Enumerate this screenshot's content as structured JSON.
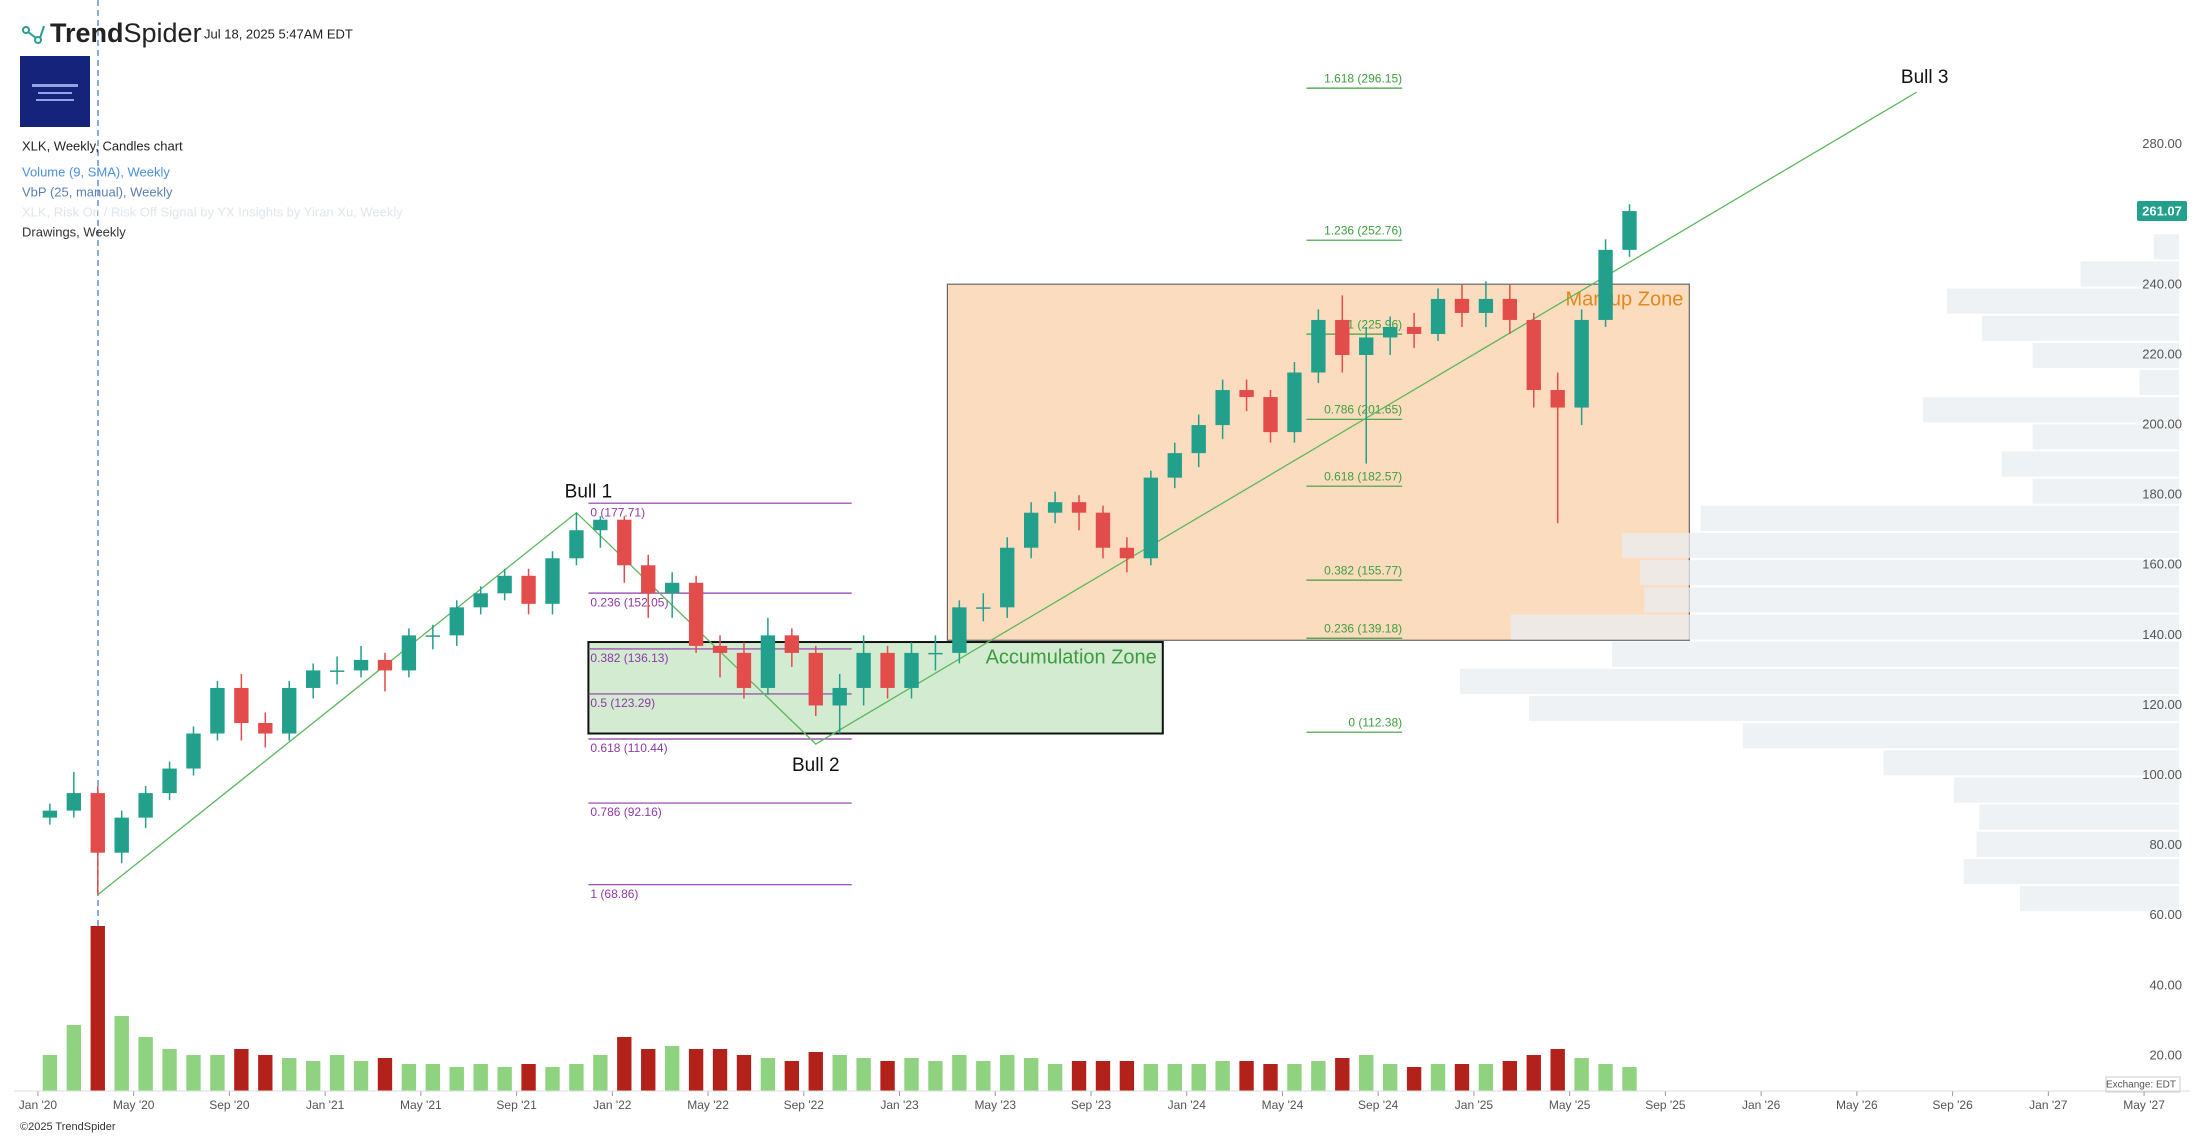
{
  "brand": [
    "Trend",
    "Spider"
  ],
  "timestamp": "Jul 18, 2025 5:47AM EDT",
  "legend": [
    "XLK, Weekly, Candles chart",
    "Volume (9, SMA), Weekly",
    "VbP (25, manual), Weekly",
    "XLK, Risk On / Risk Off Signal by YX Insights by Yiran Xu, Weekly",
    "Drawings, Weekly"
  ],
  "copyright": "©2025 TrendSpider",
  "exchange": "Exchange: EDT",
  "chart_data": {
    "type": "candlestick",
    "x": [
      "2020-01",
      "2020-02",
      "2020-03",
      "2020-04",
      "2020-05",
      "2020-06",
      "2020-07",
      "2020-08",
      "2020-09",
      "2020-10",
      "2020-11",
      "2020-12",
      "2021-01",
      "2021-02",
      "2021-03",
      "2021-04",
      "2021-05",
      "2021-06",
      "2021-07",
      "2021-08",
      "2021-09",
      "2021-10",
      "2021-11",
      "2021-12",
      "2022-01",
      "2022-02",
      "2022-03",
      "2022-04",
      "2022-05",
      "2022-06",
      "2022-07",
      "2022-08",
      "2022-09",
      "2022-10",
      "2022-11",
      "2022-12",
      "2023-01",
      "2023-02",
      "2023-03",
      "2023-04",
      "2023-05",
      "2023-06",
      "2023-07",
      "2023-08",
      "2023-09",
      "2023-10",
      "2023-11",
      "2023-12",
      "2024-01",
      "2024-02",
      "2024-03",
      "2024-04",
      "2024-05",
      "2024-06",
      "2024-07",
      "2024-08",
      "2024-09",
      "2024-10",
      "2024-11",
      "2024-12",
      "2025-01",
      "2025-02",
      "2025-03",
      "2025-04",
      "2025-05",
      "2025-06",
      "2025-07"
    ],
    "open": [
      88,
      90,
      95,
      78,
      88,
      95,
      102,
      112,
      125,
      115,
      112,
      125,
      130,
      130,
      133,
      130,
      140,
      140,
      148,
      152,
      157,
      149,
      162,
      170,
      173,
      160,
      152,
      155,
      137,
      135,
      125,
      140,
      135,
      120,
      125,
      135,
      125,
      135,
      135,
      148,
      148,
      165,
      175,
      178,
      175,
      165,
      162,
      185,
      192,
      200,
      210,
      208,
      198,
      215,
      230,
      220,
      225,
      228,
      226,
      236,
      232,
      236,
      230,
      210,
      205,
      230,
      250
    ],
    "high": [
      92,
      101,
      97,
      90,
      97,
      104,
      114,
      127,
      129,
      118,
      127,
      132,
      134,
      137,
      135,
      142,
      143,
      150,
      154,
      159,
      159,
      164,
      175,
      174,
      174,
      163,
      158,
      157,
      140,
      138,
      145,
      142,
      137,
      129,
      140,
      137,
      138,
      140,
      150,
      152,
      168,
      178,
      181,
      180,
      177,
      168,
      187,
      195,
      203,
      213,
      213,
      210,
      218,
      233,
      237,
      228,
      231,
      232,
      239,
      240,
      241,
      240,
      232,
      215,
      233,
      253,
      263
    ],
    "low": [
      86,
      88,
      66,
      75,
      85,
      93,
      100,
      110,
      110,
      108,
      110,
      122,
      126,
      128,
      124,
      128,
      136,
      137,
      146,
      150,
      146,
      146,
      160,
      165,
      155,
      145,
      145,
      135,
      128,
      122,
      123,
      131,
      117,
      112,
      120,
      122,
      122,
      130,
      132,
      144,
      145,
      162,
      172,
      170,
      162,
      158,
      160,
      182,
      188,
      196,
      204,
      195,
      195,
      212,
      215,
      189,
      220,
      222,
      224,
      228,
      228,
      226,
      205,
      172,
      200,
      228,
      248
    ],
    "close": [
      90,
      95,
      78,
      88,
      95,
      102,
      112,
      125,
      115,
      112,
      125,
      130,
      130,
      133,
      130,
      140,
      140,
      148,
      152,
      157,
      149,
      162,
      170,
      173,
      160,
      152,
      155,
      137,
      135,
      125,
      140,
      135,
      120,
      125,
      135,
      125,
      135,
      135,
      148,
      148,
      165,
      175,
      178,
      175,
      165,
      162,
      185,
      192,
      200,
      210,
      208,
      198,
      215,
      230,
      220,
      225,
      228,
      226,
      236,
      232,
      236,
      230,
      210,
      205,
      230,
      250,
      261.07
    ],
    "volume": [
      12,
      22,
      55,
      25,
      18,
      14,
      12,
      12,
      14,
      12,
      11,
      10,
      12,
      10,
      11,
      9,
      9,
      8,
      9,
      8,
      9,
      8,
      9,
      12,
      18,
      14,
      15,
      14,
      14,
      12,
      11,
      10,
      13,
      12,
      11,
      10,
      11,
      10,
      12,
      10,
      12,
      11,
      9,
      10,
      10,
      10,
      9,
      9,
      9,
      10,
      10,
      9,
      9,
      10,
      11,
      12,
      9,
      8,
      9,
      9,
      9,
      10,
      12,
      14,
      11,
      9,
      8
    ],
    "up_color": "#22a08c",
    "down_color": "#e24c4b",
    "volume_up_color": "#8fd27f",
    "volume_down_color": "#b3211b",
    "xlim": [
      "2019-12",
      "2027-06"
    ],
    "xticks": [
      {
        "value": "2020-01",
        "label": "Jan '20"
      },
      {
        "value": "2020-05",
        "label": "May '20"
      },
      {
        "value": "2020-09",
        "label": "Sep '20"
      },
      {
        "value": "2021-01",
        "label": "Jan '21"
      },
      {
        "value": "2021-05",
        "label": "May '21"
      },
      {
        "value": "2021-09",
        "label": "Sep '21"
      },
      {
        "value": "2022-01",
        "label": "Jan '22"
      },
      {
        "value": "2022-05",
        "label": "May '22"
      },
      {
        "value": "2022-09",
        "label": "Sep '22"
      },
      {
        "value": "2023-01",
        "label": "Jan '23"
      },
      {
        "value": "2023-05",
        "label": "May '23"
      },
      {
        "value": "2023-09",
        "label": "Sep '23"
      },
      {
        "value": "2024-01",
        "label": "Jan '24"
      },
      {
        "value": "2024-05",
        "label": "May '24"
      },
      {
        "value": "2024-09",
        "label": "Sep '24"
      },
      {
        "value": "2025-01",
        "label": "Jan '25"
      },
      {
        "value": "2025-05",
        "label": "May '25"
      },
      {
        "value": "2025-09",
        "label": "Sep '25"
      },
      {
        "value": "2026-01",
        "label": "Jan '26"
      },
      {
        "value": "2026-05",
        "label": "May '26"
      },
      {
        "value": "2026-09",
        "label": "Sep '26"
      },
      {
        "value": "2027-01",
        "label": "Jan '27"
      },
      {
        "value": "2027-05",
        "label": "May '27"
      }
    ],
    "ylim": [
      10,
      321
    ],
    "yticks": [
      {
        "value": 20,
        "label": "20.00"
      },
      {
        "value": 40,
        "label": "40.00"
      },
      {
        "value": 60,
        "label": "60.00"
      },
      {
        "value": 80,
        "label": "80.00"
      },
      {
        "value": 100,
        "label": "100.00"
      },
      {
        "value": 120,
        "label": "120.00"
      },
      {
        "value": 140,
        "label": "140.00"
      },
      {
        "value": 160,
        "label": "160.00"
      },
      {
        "value": 180,
        "label": "180.00"
      },
      {
        "value": 200,
        "label": "200.00"
      },
      {
        "value": 220,
        "label": "220.00"
      },
      {
        "value": 240,
        "label": "240.00"
      },
      {
        "value": 260,
        "label": "260.00"
      },
      {
        "value": 280,
        "label": "280.00"
      }
    ],
    "vbp": {
      "bins": [
        61,
        68.75,
        76.5,
        84.25,
        92,
        99.75,
        107.5,
        115.25,
        123,
        130.75,
        138.5,
        146.25,
        154,
        161.75,
        169.5,
        177.25,
        185,
        192.75,
        200.5,
        208.25,
        216,
        223.75,
        231.5,
        239.25,
        247,
        254.75
      ],
      "values": [
        113,
        153,
        144,
        142,
        160,
        210,
        310,
        462,
        511,
        403,
        475,
        380,
        383,
        396,
        340,
        104,
        126,
        104,
        182,
        28,
        104,
        140,
        165,
        70,
        18
      ],
      "color": "#e9edf0"
    },
    "zones": [
      {
        "label": "Accumulation Zone",
        "x": [
          "2021-12",
          "2023-12"
        ],
        "y": [
          112,
          138.1
        ],
        "color": "#d3ebd1",
        "text_color": "#3e9b3e"
      },
      {
        "label": "Markup Zone",
        "x": [
          "2023-03",
          "2025-10"
        ],
        "y": [
          138.6,
          240.2
        ],
        "color": "#fcdcbe",
        "text_color": "#e08a1e"
      }
    ],
    "fib_sets": [
      {
        "color": "#8e3aa8",
        "x": [
          "2021-12",
          "2022-11"
        ],
        "levels": [
          {
            "label": "0 (177.71)",
            "value": 177.71
          },
          {
            "label": "0.236 (152.05)",
            "value": 152.05
          },
          {
            "label": "0.382 (136.13)",
            "value": 136.13
          },
          {
            "label": "0.5 (123.29)",
            "value": 123.29
          },
          {
            "label": "0.618 (110.44)",
            "value": 110.44
          },
          {
            "label": "0.786 (92.16)",
            "value": 92.16
          },
          {
            "label": "1 (68.86)",
            "value": 68.86
          }
        ]
      },
      {
        "color": "#3f9e3f",
        "x": [
          "2024-06",
          "2024-10"
        ],
        "levels": [
          {
            "label": "1.618 (296.15)",
            "value": 296.15
          },
          {
            "label": "1.236 (252.76)",
            "value": 252.76
          },
          {
            "label": "1 (225.96)",
            "value": 225.96
          },
          {
            "label": "0.786 (201.65)",
            "value": 201.65
          },
          {
            "label": "0.618 (182.57)",
            "value": 182.57
          },
          {
            "label": "0.382 (155.77)",
            "value": 155.77
          },
          {
            "label": "0.236 (139.18)",
            "value": 139.18
          },
          {
            "label": "0 (112.38)",
            "value": 112.38
          }
        ]
      }
    ],
    "trendline": {
      "x": [
        "2020-03",
        "2021-11",
        "2022-09",
        "2026-07"
      ],
      "y": [
        66,
        175,
        109,
        295
      ],
      "labels": [
        null,
        "Bull 1",
        "Bull 2",
        "Bull 3"
      ],
      "color": "#5cb85c"
    }
  }
}
